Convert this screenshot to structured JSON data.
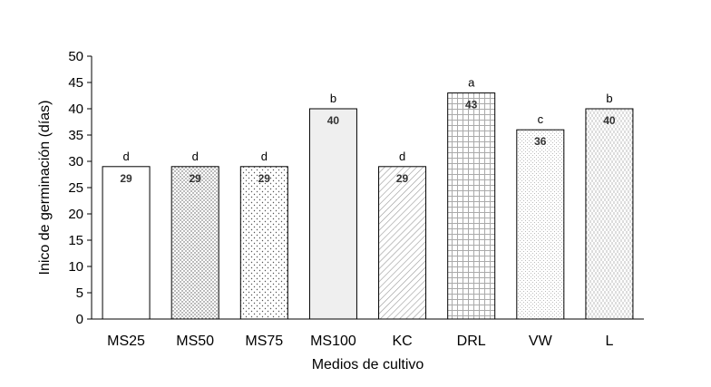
{
  "chart_data": {
    "type": "bar",
    "title": "",
    "xlabel": "Medios de cultivo",
    "ylabel": "Inico de germinación (días)",
    "ylim": [
      0,
      50
    ],
    "yticks": [
      0,
      5,
      10,
      15,
      20,
      25,
      30,
      35,
      40,
      45,
      50
    ],
    "grid": false,
    "categories": [
      "MS25",
      "MS50",
      "MS75",
      "MS100",
      "KC",
      "DRL",
      "VW",
      "L"
    ],
    "values": [
      29,
      29,
      29,
      40,
      29,
      43,
      36,
      40
    ],
    "value_labels": [
      "29",
      "29",
      "29",
      "40",
      "29",
      "43",
      "36",
      "40"
    ],
    "significance_letters": [
      "d",
      "d",
      "d",
      "b",
      "d",
      "a",
      "c",
      "b"
    ],
    "fills": [
      "white",
      "dense-dots",
      "sparse-dots",
      "light-gray",
      "diagonal-hatch",
      "grid",
      "small-dots",
      "vertical-dash"
    ],
    "bar_outline_color": "#000000"
  }
}
